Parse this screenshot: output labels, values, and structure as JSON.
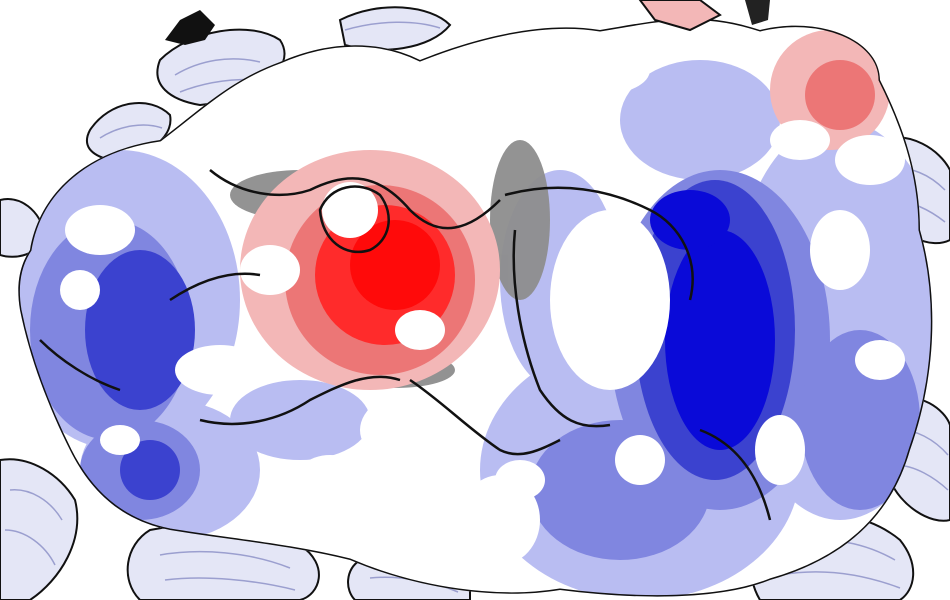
{
  "image": {
    "subject": "protein-electrostatic-surface",
    "colors": {
      "background": "#ffffff",
      "ribbon_fill": "#e4e6f6",
      "ribbon_shade": "#9b9fcf",
      "outline": "#111111",
      "neutral_white": "#ffffff",
      "neutral_grey": "#8d8d8d",
      "light_blue": "#b9bdf2",
      "mid_blue": "#8086e0",
      "blue": "#3b42cf",
      "deep_blue": "#0a0ad8",
      "light_red": "#f3b7b7",
      "mid_red": "#ec7676",
      "red": "#ff2b2b",
      "deep_red": "#ff0a0a",
      "ligand_dark": "#111111"
    }
  }
}
